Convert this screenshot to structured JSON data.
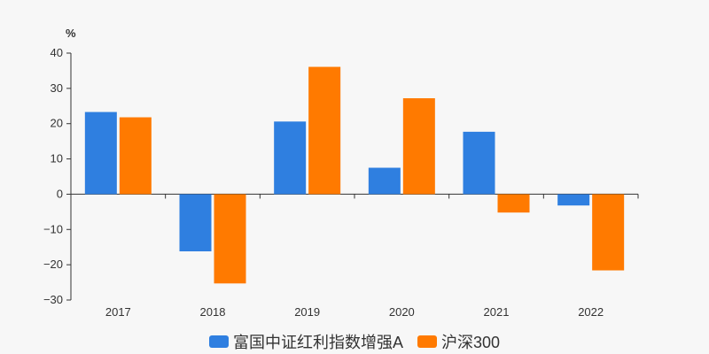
{
  "chart_data": {
    "type": "bar",
    "unit_label": "%",
    "categories": [
      "2017",
      "2018",
      "2019",
      "2020",
      "2021",
      "2022"
    ],
    "series": [
      {
        "name": "富国中证红利指数增强A",
        "color": "#2f7fe0",
        "values": [
          23.3,
          -16.2,
          20.6,
          7.5,
          17.7,
          -3.2
        ]
      },
      {
        "name": "沪深300",
        "color": "#ff7a00",
        "values": [
          21.8,
          -25.3,
          36.1,
          27.2,
          -5.2,
          -21.6
        ]
      }
    ],
    "ylim": [
      -30,
      40
    ],
    "yticks": [
      "40",
      "30",
      "20",
      "10",
      "0",
      "−10",
      "−20",
      "−30"
    ],
    "ytick_values": [
      40,
      30,
      20,
      10,
      0,
      -10,
      -20,
      -30
    ],
    "grid": false,
    "legend_position": "bottom"
  }
}
